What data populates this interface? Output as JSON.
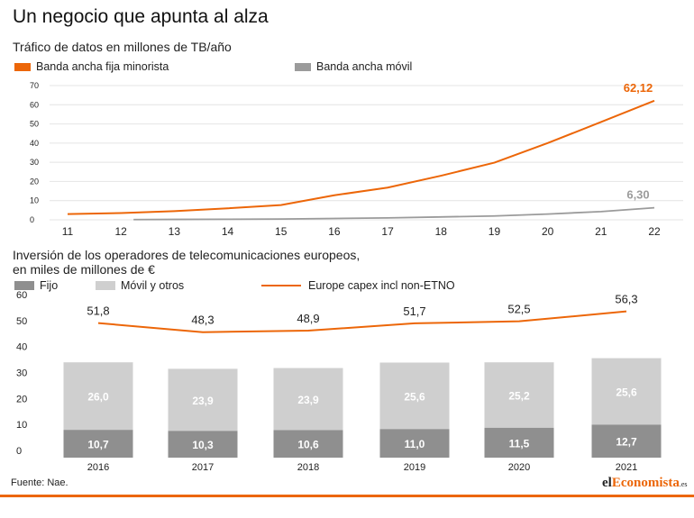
{
  "title": "Un negocio que apunta al alza",
  "chart1": {
    "subtitle": "Tráfico de datos en millones de TB/año",
    "legend": {
      "fixed": "Banda ancha fija minorista",
      "mobile": "Banda ancha móvil"
    }
  },
  "chart2": {
    "subtitle_line1": "Inversión de los operadores de telecomunicaciones europeos,",
    "subtitle_line2": "en miles de millones de €",
    "legend": {
      "fijo": "Fijo",
      "movil": "Móvil y otros",
      "capex": "Europe capex incl non-ETNO"
    }
  },
  "footer": {
    "source": "Fuente: Nae.",
    "brand_prefix": "el",
    "brand_highlight": "Economista",
    "brand_suffix": ".es"
  },
  "colors": {
    "orange": "#ec6608",
    "gray_line": "#9b9b9b",
    "fijo": "#8f8f8f",
    "movil": "#cfcfcf",
    "grid": "#e4e4e4"
  },
  "chart_data": [
    {
      "type": "line",
      "x": [
        "11",
        "12",
        "13",
        "14",
        "15",
        "16",
        "17",
        "18",
        "19",
        "20",
        "21",
        "22"
      ],
      "ylim": [
        0,
        70
      ],
      "yticks": [
        0,
        10,
        20,
        30,
        40,
        50,
        60,
        70
      ],
      "series": [
        {
          "name": "Banda ancha fija minorista",
          "values": [
            3.0,
            3.5,
            4.5,
            6.0,
            7.7,
            12.8,
            16.8,
            23.0,
            29.8,
            40.0,
            51.0,
            62.12
          ],
          "end_label": "62,12",
          "color": "#ec6608"
        },
        {
          "name": "Banda ancha móvil",
          "values": [
            null,
            0.1,
            0.2,
            0.3,
            0.4,
            0.7,
            1.0,
            1.5,
            2.0,
            3.0,
            4.3,
            6.3
          ],
          "end_label": "6,30",
          "color": "#9b9b9b"
        }
      ],
      "grid": true
    },
    {
      "type": "bar",
      "stacked": true,
      "categories": [
        "2016",
        "2017",
        "2018",
        "2019",
        "2020",
        "2021"
      ],
      "ylim": [
        0,
        60
      ],
      "yticks": [
        0,
        10,
        20,
        30,
        40,
        50,
        60
      ],
      "series": [
        {
          "name": "Fijo",
          "values": [
            10.7,
            10.3,
            10.6,
            11.0,
            11.5,
            12.7
          ],
          "labels": [
            "10,7",
            "10,3",
            "10,6",
            "11,0",
            "11,5",
            "12,7"
          ],
          "color": "#8f8f8f"
        },
        {
          "name": "Móvil y otros",
          "values": [
            26.0,
            23.9,
            23.9,
            25.6,
            25.2,
            25.6
          ],
          "labels": [
            "26,0",
            "23,9",
            "23,9",
            "25,6",
            "25,2",
            "25,6"
          ],
          "color": "#cfcfcf"
        }
      ],
      "line": {
        "name": "Europe capex incl non-ETNO",
        "values": [
          51.8,
          48.3,
          48.9,
          51.7,
          52.5,
          56.3
        ],
        "labels": [
          "51,8",
          "48,3",
          "48,9",
          "51,7",
          "52,5",
          "56,3"
        ],
        "color": "#ec6608"
      },
      "grid": false
    }
  ]
}
